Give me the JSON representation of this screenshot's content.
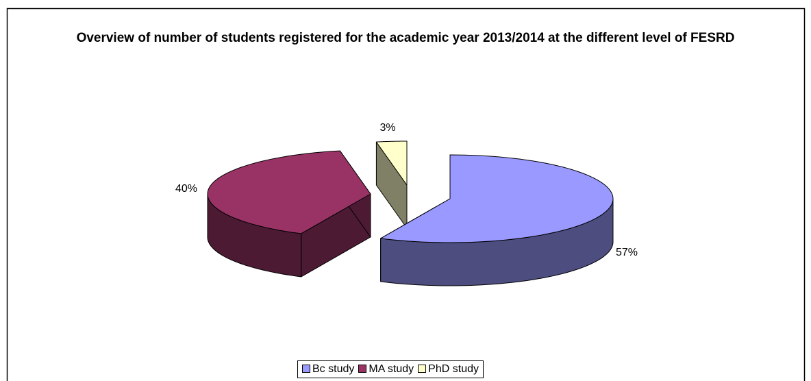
{
  "chart_data": {
    "type": "pie",
    "title": "Overview of number of students registered for the academic year 2013/2014 at the different level of FESRD",
    "categories": [
      "Bc study",
      "MA study",
      "PhD study"
    ],
    "values": [
      57,
      40,
      3
    ],
    "value_labels": [
      "57%",
      "40%",
      "3%"
    ],
    "colors": [
      "#9999ff",
      "#993366",
      "#ffffcc"
    ],
    "legend": "bottom"
  }
}
